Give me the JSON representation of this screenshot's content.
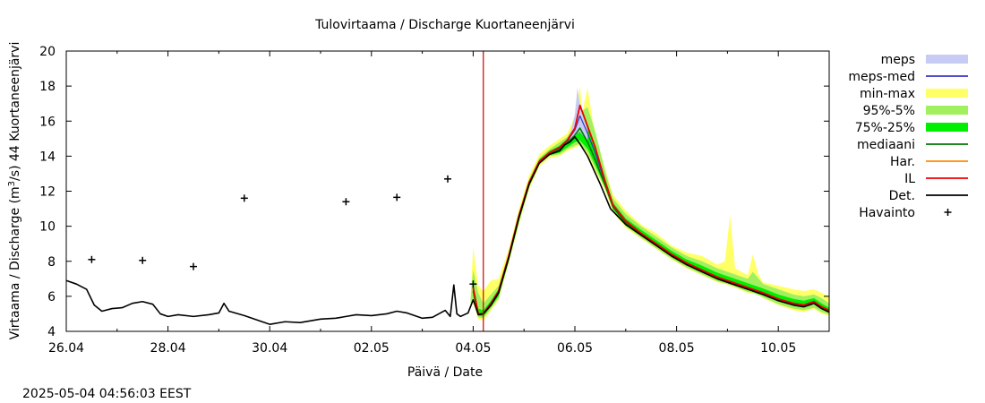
{
  "chart_data": {
    "type": "line",
    "title": "Tulovirtaama / Discharge  Kuortaneenjärvi",
    "xlabel": "Päivä / Date",
    "ylabel": "Virtaama / Discharge (m³/s)  44 Kuortaneenjärvi",
    "ylabel_parts": {
      "pre": "Virtaama / Discharge (m",
      "sup": "3",
      "post": "/s)  44 Kuortaneenjärvi"
    },
    "timestamp": "2025-05-04 04:56:03 EEST",
    "xlim": [
      0,
      15
    ],
    "ylim": [
      4,
      20
    ],
    "yticks": [
      4,
      6,
      8,
      10,
      12,
      14,
      16,
      18,
      20
    ],
    "xticks": [
      {
        "x": 0,
        "label": "26.04"
      },
      {
        "x": 2,
        "label": "28.04"
      },
      {
        "x": 4,
        "label": "30.04"
      },
      {
        "x": 6,
        "label": "02.05"
      },
      {
        "x": 8,
        "label": "04.05"
      },
      {
        "x": 10,
        "label": "06.05"
      },
      {
        "x": 12,
        "label": "08.05"
      },
      {
        "x": 14,
        "label": "10.05"
      }
    ],
    "forecast_start_x": 8.2,
    "legend_position": "right",
    "legend": [
      {
        "key": "meps",
        "label": "meps",
        "kind": "band",
        "color": "#c8ccf5"
      },
      {
        "key": "meps_med",
        "label": "meps-med",
        "kind": "line",
        "color": "#3535c8"
      },
      {
        "key": "minmax",
        "label": "min-max",
        "kind": "band",
        "color": "#ffff66"
      },
      {
        "key": "p95_5",
        "label": "95%-5%",
        "kind": "band",
        "color": "#a0f060"
      },
      {
        "key": "p75_25",
        "label": "75%-25%",
        "kind": "band",
        "color": "#00ee00"
      },
      {
        "key": "median",
        "label": "mediaani",
        "kind": "line",
        "color": "#007700"
      },
      {
        "key": "har",
        "label": "Har.",
        "kind": "line",
        "color": "#ff8c00"
      },
      {
        "key": "il",
        "label": "IL",
        "kind": "line",
        "color": "#ee0000"
      },
      {
        "key": "det",
        "label": "Det.",
        "kind": "line",
        "color": "#000000"
      },
      {
        "key": "havainto",
        "label": "Havainto",
        "kind": "marker",
        "color": "#000000"
      }
    ],
    "series": [
      {
        "key": "observed",
        "name": "Havainto",
        "points": [
          [
            0.5,
            8.1
          ],
          [
            1.5,
            8.05
          ],
          [
            2.5,
            7.7
          ],
          [
            3.5,
            11.6
          ],
          [
            5.5,
            11.4
          ],
          [
            6.5,
            11.65
          ],
          [
            7.5,
            12.7
          ],
          [
            8.0,
            6.7
          ]
        ]
      },
      {
        "key": "det",
        "name": "Det.",
        "points": [
          [
            0.0,
            6.9
          ],
          [
            0.2,
            6.7
          ],
          [
            0.4,
            6.4
          ],
          [
            0.55,
            5.5
          ],
          [
            0.7,
            5.15
          ],
          [
            0.9,
            5.3
          ],
          [
            1.1,
            5.35
          ],
          [
            1.3,
            5.6
          ],
          [
            1.5,
            5.7
          ],
          [
            1.7,
            5.55
          ],
          [
            1.85,
            5.0
          ],
          [
            2.0,
            4.85
          ],
          [
            2.2,
            4.95
          ],
          [
            2.5,
            4.85
          ],
          [
            2.8,
            4.95
          ],
          [
            3.0,
            5.05
          ],
          [
            3.1,
            5.6
          ],
          [
            3.2,
            5.15
          ],
          [
            3.5,
            4.9
          ],
          [
            3.8,
            4.6
          ],
          [
            4.0,
            4.4
          ],
          [
            4.3,
            4.55
          ],
          [
            4.6,
            4.5
          ],
          [
            5.0,
            4.7
          ],
          [
            5.3,
            4.75
          ],
          [
            5.5,
            4.85
          ],
          [
            5.7,
            4.95
          ],
          [
            6.0,
            4.9
          ],
          [
            6.3,
            5.0
          ],
          [
            6.5,
            5.15
          ],
          [
            6.7,
            5.05
          ],
          [
            7.0,
            4.75
          ],
          [
            7.2,
            4.8
          ],
          [
            7.45,
            5.2
          ],
          [
            7.55,
            4.85
          ],
          [
            7.62,
            6.65
          ],
          [
            7.68,
            5.0
          ],
          [
            7.75,
            4.85
          ],
          [
            7.9,
            5.05
          ],
          [
            8.0,
            5.8
          ],
          [
            8.05,
            5.4
          ],
          [
            8.1,
            4.95
          ],
          [
            8.2,
            5.0
          ],
          [
            8.35,
            5.5
          ],
          [
            8.5,
            6.2
          ],
          [
            8.7,
            8.2
          ],
          [
            8.9,
            10.5
          ],
          [
            9.1,
            12.4
          ],
          [
            9.3,
            13.6
          ],
          [
            9.5,
            14.1
          ],
          [
            9.7,
            14.3
          ],
          [
            9.8,
            14.65
          ],
          [
            9.9,
            14.8
          ],
          [
            10.0,
            15.1
          ],
          [
            10.1,
            14.7
          ],
          [
            10.25,
            14.0
          ],
          [
            10.5,
            12.4
          ],
          [
            10.7,
            11.0
          ],
          [
            11.0,
            10.1
          ],
          [
            11.3,
            9.5
          ],
          [
            11.6,
            8.9
          ],
          [
            11.9,
            8.3
          ],
          [
            12.2,
            7.8
          ],
          [
            12.5,
            7.4
          ],
          [
            12.8,
            7.0
          ],
          [
            13.1,
            6.7
          ],
          [
            13.4,
            6.4
          ],
          [
            13.7,
            6.1
          ],
          [
            14.0,
            5.75
          ],
          [
            14.3,
            5.5
          ],
          [
            14.5,
            5.4
          ],
          [
            14.7,
            5.6
          ],
          [
            14.85,
            5.3
          ],
          [
            15.0,
            5.1
          ]
        ]
      },
      {
        "key": "il",
        "name": "IL",
        "points": [
          [
            8.0,
            6.5
          ],
          [
            8.1,
            5.0
          ],
          [
            8.2,
            5.0
          ],
          [
            8.35,
            5.6
          ],
          [
            8.5,
            6.3
          ],
          [
            8.7,
            8.3
          ],
          [
            8.9,
            10.6
          ],
          [
            9.1,
            12.5
          ],
          [
            9.3,
            13.7
          ],
          [
            9.5,
            14.2
          ],
          [
            9.7,
            14.5
          ],
          [
            9.85,
            14.9
          ],
          [
            10.0,
            15.6
          ],
          [
            10.1,
            16.9
          ],
          [
            10.25,
            15.7
          ],
          [
            10.4,
            14.5
          ],
          [
            10.6,
            12.5
          ],
          [
            10.75,
            11.2
          ],
          [
            11.0,
            10.3
          ],
          [
            11.3,
            9.6
          ],
          [
            11.6,
            9.0
          ],
          [
            11.9,
            8.4
          ],
          [
            12.2,
            7.9
          ],
          [
            12.5,
            7.5
          ],
          [
            12.8,
            7.1
          ],
          [
            13.1,
            6.8
          ],
          [
            13.4,
            6.5
          ],
          [
            13.7,
            6.2
          ],
          [
            14.0,
            5.85
          ],
          [
            14.3,
            5.6
          ],
          [
            14.5,
            5.5
          ],
          [
            14.7,
            5.7
          ],
          [
            14.85,
            5.4
          ],
          [
            15.0,
            5.2
          ]
        ]
      },
      {
        "key": "median",
        "name": "mediaani",
        "points": [
          [
            8.0,
            6.3
          ],
          [
            8.1,
            5.0
          ],
          [
            8.2,
            5.0
          ],
          [
            8.35,
            5.55
          ],
          [
            8.5,
            6.2
          ],
          [
            8.7,
            8.2
          ],
          [
            8.9,
            10.5
          ],
          [
            9.1,
            12.4
          ],
          [
            9.3,
            13.65
          ],
          [
            9.5,
            14.15
          ],
          [
            9.7,
            14.4
          ],
          [
            9.85,
            14.75
          ],
          [
            10.0,
            15.2
          ],
          [
            10.1,
            15.6
          ],
          [
            10.25,
            14.8
          ],
          [
            10.4,
            13.8
          ],
          [
            10.6,
            12.3
          ],
          [
            10.75,
            11.1
          ],
          [
            11.0,
            10.2
          ],
          [
            11.3,
            9.55
          ],
          [
            11.6,
            8.95
          ],
          [
            11.9,
            8.35
          ],
          [
            12.2,
            7.85
          ],
          [
            12.5,
            7.45
          ],
          [
            12.8,
            7.05
          ],
          [
            13.1,
            6.75
          ],
          [
            13.4,
            6.45
          ],
          [
            13.7,
            6.15
          ],
          [
            14.0,
            5.8
          ],
          [
            14.3,
            5.55
          ],
          [
            14.5,
            5.45
          ],
          [
            14.7,
            5.65
          ],
          [
            14.85,
            5.35
          ],
          [
            15.0,
            5.15
          ]
        ]
      },
      {
        "key": "meps_med",
        "name": "meps-med",
        "points": [
          [
            8.0,
            6.4
          ],
          [
            8.1,
            5.0
          ],
          [
            8.2,
            5.0
          ],
          [
            8.35,
            5.55
          ],
          [
            8.5,
            6.25
          ],
          [
            8.7,
            8.25
          ],
          [
            8.9,
            10.55
          ],
          [
            9.1,
            12.45
          ],
          [
            9.3,
            13.7
          ],
          [
            9.5,
            14.2
          ],
          [
            9.7,
            14.45
          ],
          [
            9.85,
            14.85
          ],
          [
            10.0,
            15.5
          ],
          [
            10.1,
            16.3
          ],
          [
            10.25,
            15.3
          ],
          [
            10.4,
            14.2
          ],
          [
            10.6,
            12.4
          ],
          [
            10.75,
            11.15
          ]
        ]
      }
    ],
    "bands": [
      {
        "key": "minmax",
        "name": "min-max",
        "x": [
          7.95,
          8.0,
          8.1,
          8.2,
          8.35,
          8.5,
          8.7,
          8.9,
          9.1,
          9.3,
          9.5,
          9.7,
          9.85,
          10.0,
          10.1,
          10.15,
          10.25,
          10.35,
          10.45,
          10.6,
          10.75,
          11.0,
          11.3,
          11.6,
          11.9,
          12.2,
          12.5,
          12.8,
          12.95,
          13.05,
          13.15,
          13.4,
          13.5,
          13.6,
          13.7,
          14.0,
          14.3,
          14.5,
          14.7,
          14.85,
          15.0
        ],
        "lower": [
          5.5,
          5.6,
          4.7,
          4.6,
          5.2,
          5.8,
          7.9,
          10.1,
          12.1,
          13.4,
          13.9,
          14.0,
          14.3,
          14.5,
          14.6,
          14.5,
          14.0,
          13.3,
          12.9,
          12.0,
          10.8,
          9.9,
          9.3,
          8.7,
          8.1,
          7.6,
          7.2,
          6.8,
          6.7,
          6.6,
          6.5,
          6.2,
          6.15,
          6.1,
          5.9,
          5.5,
          5.2,
          5.1,
          5.3,
          5.0,
          4.9
        ],
        "upper": [
          6.0,
          8.8,
          6.6,
          6.3,
          6.9,
          7.0,
          8.7,
          11.0,
          12.9,
          14.1,
          14.6,
          15.0,
          15.3,
          16.3,
          18.0,
          16.5,
          17.9,
          16.0,
          14.8,
          13.2,
          11.8,
          10.9,
          10.1,
          9.6,
          8.9,
          8.5,
          8.3,
          7.8,
          8.0,
          10.6,
          7.6,
          7.2,
          8.4,
          7.3,
          6.8,
          6.6,
          6.4,
          6.3,
          6.4,
          6.2,
          6.0
        ]
      },
      {
        "key": "p95_5",
        "name": "95%-5%",
        "x": [
          7.95,
          8.0,
          8.1,
          8.2,
          8.35,
          8.5,
          8.7,
          8.9,
          9.1,
          9.3,
          9.5,
          9.7,
          9.85,
          10.0,
          10.1,
          10.25,
          10.4,
          10.6,
          10.75,
          11.0,
          11.3,
          11.6,
          11.9,
          12.2,
          12.5,
          12.8,
          13.0,
          13.1,
          13.4,
          13.5,
          13.7,
          14.0,
          14.3,
          14.5,
          14.7,
          14.85,
          15.0
        ],
        "lower": [
          5.6,
          5.7,
          4.8,
          4.75,
          5.3,
          5.9,
          8.0,
          10.2,
          12.2,
          13.5,
          14.0,
          14.1,
          14.4,
          14.6,
          14.7,
          14.2,
          13.3,
          12.1,
          10.9,
          10.0,
          9.35,
          8.75,
          8.15,
          7.65,
          7.25,
          6.85,
          6.7,
          6.6,
          6.25,
          6.2,
          5.95,
          5.55,
          5.3,
          5.2,
          5.35,
          5.1,
          4.95
        ],
        "upper": [
          5.9,
          7.5,
          6.2,
          5.6,
          6.1,
          6.6,
          8.5,
          10.8,
          12.7,
          13.9,
          14.4,
          14.8,
          15.1,
          15.8,
          16.5,
          16.8,
          15.4,
          13.1,
          11.6,
          10.7,
          10.0,
          9.4,
          8.8,
          8.3,
          8.0,
          7.6,
          7.4,
          7.3,
          7.0,
          7.4,
          6.7,
          6.4,
          6.1,
          6.0,
          6.1,
          5.9,
          5.6
        ]
      },
      {
        "key": "p75_25",
        "name": "75%-25%",
        "x": [
          8.0,
          8.1,
          8.2,
          8.35,
          8.5,
          8.7,
          8.9,
          9.1,
          9.3,
          9.5,
          9.7,
          9.85,
          10.0,
          10.1,
          10.25,
          10.4,
          10.6,
          10.75,
          11.0,
          11.3,
          11.6,
          11.9,
          12.2,
          12.5,
          12.8,
          13.1,
          13.4,
          13.7,
          14.0,
          14.3,
          14.5,
          14.7,
          14.85,
          15.0
        ],
        "lower": [
          6.0,
          4.9,
          4.85,
          5.4,
          6.0,
          8.0,
          10.3,
          12.3,
          13.55,
          14.05,
          14.2,
          14.5,
          14.8,
          14.9,
          14.4,
          13.5,
          12.2,
          11.0,
          10.05,
          9.45,
          8.85,
          8.25,
          7.75,
          7.35,
          6.95,
          6.65,
          6.35,
          6.05,
          5.7,
          5.45,
          5.35,
          5.55,
          5.25,
          5.05
        ],
        "upper": [
          6.6,
          5.3,
          5.2,
          5.75,
          6.4,
          8.35,
          10.65,
          12.55,
          13.8,
          14.3,
          14.6,
          15.0,
          15.5,
          16.0,
          15.6,
          14.6,
          12.7,
          11.35,
          10.45,
          9.8,
          9.2,
          8.6,
          8.1,
          7.75,
          7.35,
          7.05,
          6.75,
          6.45,
          6.1,
          5.85,
          5.75,
          5.9,
          5.6,
          5.35
        ]
      },
      {
        "key": "meps",
        "name": "meps",
        "x": [
          9.9,
          10.0,
          10.05,
          10.1,
          10.15,
          10.25
        ],
        "lower": [
          14.8,
          15.1,
          15.3,
          15.4,
          15.2,
          14.9
        ],
        "upper": [
          15.2,
          16.4,
          17.9,
          17.0,
          16.3,
          15.5
        ]
      }
    ]
  }
}
